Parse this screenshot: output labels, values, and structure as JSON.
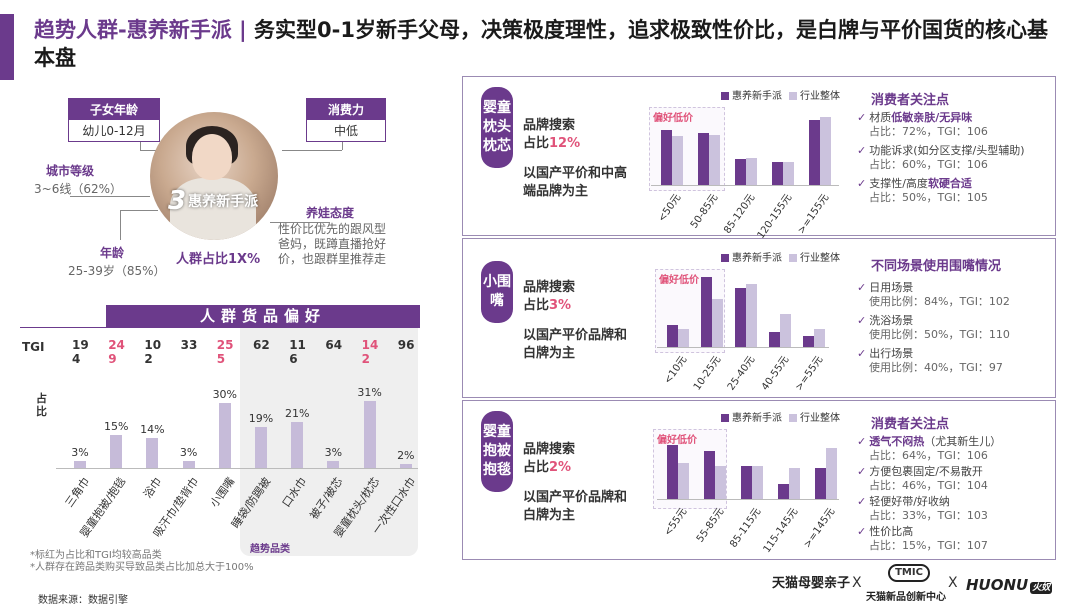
{
  "title": {
    "part1": "趋势人群-惠养新手派 |",
    "part2": " 务实型0-1岁新手父母，决策极度理性，追求极致性价比，是白牌与平价国货的核心基本盘"
  },
  "persona": {
    "child_age": {
      "head": "子女年龄",
      "value": "幼儿0-12月"
    },
    "spending": {
      "head": "消费力",
      "value": "中低"
    },
    "city": {
      "head": "城市等级",
      "value": "3~6线（62%）"
    },
    "age": {
      "head": "年龄",
      "value": "25-39岁（85%）"
    },
    "parenting": {
      "head": "养娃态度",
      "value": "性价比优先的跟风型爸妈，既蹲直播抢好价，也跟群里推荐走"
    },
    "name_number": "3",
    "name": "惠养新手派",
    "share": "人群占比1X%"
  },
  "goods": {
    "title": "人群货品偏好",
    "tgi_label": "TGI",
    "zhanbi_label": "占比",
    "highlight_tag": "趋势品类",
    "notes": [
      "*标红为占比和TGI均较高品类",
      "*人群存在跨品类购买导致品类占比加总大于100%"
    ],
    "source": "数据来源：数据引擎"
  },
  "chart_data": [
    {
      "type": "bar",
      "title": "人群货品偏好",
      "categories": [
        "三角巾",
        "婴童抱被/抱毯",
        "浴巾",
        "吸汗巾/垫背巾",
        "小围嘴",
        "睡袋/防踢被",
        "口水巾",
        "被子/被芯",
        "婴童枕头/枕芯",
        "一次性口水巾"
      ],
      "values": [
        3,
        15,
        14,
        3,
        30,
        19,
        21,
        3,
        31,
        2
      ],
      "value_labels": [
        "3%",
        "15%",
        "14%",
        "3%",
        "30%",
        "19%",
        "21%",
        "3%",
        "31%",
        "2%"
      ],
      "tgi": [
        "194",
        "249",
        "102",
        "33",
        "255",
        "62",
        "116",
        "64",
        "142",
        "96"
      ],
      "tgi_red": [
        false,
        true,
        false,
        false,
        true,
        false,
        false,
        false,
        true,
        false
      ],
      "ylabel": "占比",
      "ylim": [
        0,
        35
      ]
    },
    {
      "type": "bar",
      "categories": [
        "<50元",
        "50-85元",
        "85-120元",
        "120-155元",
        ">=155元"
      ],
      "series": [
        {
          "name": "惠养新手派",
          "values": [
            38,
            36,
            18,
            16,
            45
          ]
        },
        {
          "name": "行业整体",
          "values": [
            34,
            35,
            19,
            16,
            47
          ]
        }
      ],
      "highlight": "偏好低价",
      "ylim": [
        0,
        50
      ]
    },
    {
      "type": "bar",
      "categories": [
        "<10元",
        "10-25元",
        "25-40元",
        "40-55元",
        ">=55元"
      ],
      "series": [
        {
          "name": "惠养新手派",
          "values": [
            12,
            38,
            32,
            8,
            6
          ]
        },
        {
          "name": "行业整体",
          "values": [
            10,
            26,
            34,
            18,
            10
          ]
        }
      ],
      "highlight": "偏好低价",
      "ylim": [
        0,
        40
      ]
    },
    {
      "type": "bar",
      "categories": [
        "<55元",
        "55-85元",
        "85-115元",
        "115-145元",
        ">=145元"
      ],
      "series": [
        {
          "name": "惠养新手派",
          "values": [
            36,
            32,
            22,
            10,
            21
          ]
        },
        {
          "name": "行业整体",
          "values": [
            24,
            22,
            22,
            21,
            34
          ]
        }
      ],
      "highlight": "偏好低价",
      "ylim": [
        0,
        40
      ]
    }
  ],
  "panels": [
    {
      "side": "婴童枕头枕芯",
      "search_label": "品牌搜索",
      "search_prefix": "占比",
      "search_pct": "12%",
      "desc": "以国产平价和中高端品牌为主",
      "legend_a": "惠养新手派",
      "legend_b": "行业整体",
      "head": "消费者关注点",
      "items": [
        {
          "pre": "材质",
          "hl": "低敏亲肤/无异味",
          "post": "",
          "sub": "占比：72%，TGI：106"
        },
        {
          "pre": "功能诉求(如分区支撑/头型辅助)",
          "hl": "",
          "post": "",
          "sub": "占比：60%，TGI：106"
        },
        {
          "pre": "支撑性/高度",
          "hl": "软硬合适",
          "post": "",
          "sub": "占比：50%，TGI：105"
        }
      ]
    },
    {
      "side": "小围嘴",
      "search_label": "品牌搜索",
      "search_prefix": "占比",
      "search_pct": "3%",
      "desc": "以国产平价品牌和白牌为主",
      "legend_a": "惠养新手派",
      "legend_b": "行业整体",
      "head": "不同场景使用围嘴情况",
      "items": [
        {
          "pre": "日用场景",
          "hl": "",
          "post": "",
          "sub": "使用比例：84%，TGI：102"
        },
        {
          "pre": "洗浴场景",
          "hl": "",
          "post": "",
          "sub": "使用比例：50%，TGI：110"
        },
        {
          "pre": "出行场景",
          "hl": "",
          "post": "",
          "sub": "使用比例：40%，TGI：97"
        }
      ]
    },
    {
      "side": "婴童抱被抱毯",
      "search_label": "品牌搜索",
      "search_prefix": "占比",
      "search_pct": "2%",
      "desc": "以国产平价品牌和白牌为主",
      "legend_a": "惠养新手派",
      "legend_b": "行业整体",
      "head": "消费者关注点",
      "items": [
        {
          "pre": "",
          "hl": "透气不闷热",
          "post": "（尤其新生儿）",
          "sub": "占比：64%，TGI：106"
        },
        {
          "pre": "方便包裹固定/不易散开",
          "hl": "",
          "post": "",
          "sub": "占比：46%，TGI：104"
        },
        {
          "pre": "轻便好带/好收纳",
          "hl": "",
          "post": "",
          "sub": "占比：33%，TGI：103"
        },
        {
          "pre": "性价比高",
          "hl": "",
          "post": "",
          "sub": "占比：15%，TGI：107"
        }
      ]
    }
  ],
  "logos": {
    "tmall": "天猫母婴亲子",
    "x": "X",
    "tmic_badge": "TMIC",
    "tmic": "天猫新品创新中心",
    "huonu": "HUONU",
    "huonu_cn": "火奴"
  },
  "colors": {
    "accent": "#6b3a8c",
    "series_b": "#cbc2dd",
    "goods_bar": "#c6bbd9",
    "red": "#e0537a"
  }
}
